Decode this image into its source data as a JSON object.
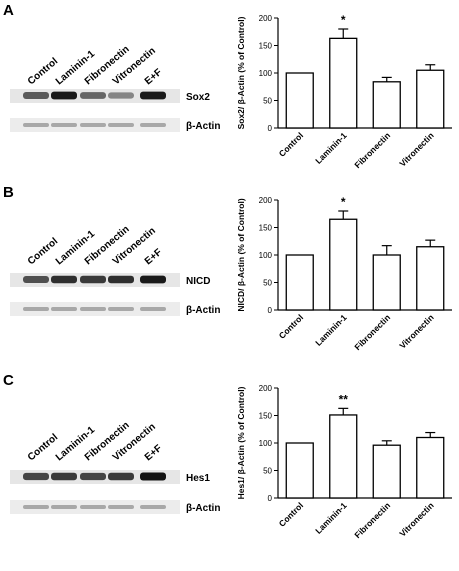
{
  "panels": [
    {
      "letter": "A",
      "blot": {
        "lanes": [
          "Control",
          "Laminin-1",
          "Fibronectin",
          "Vitronectin",
          "E+F"
        ],
        "target_label": "Sox2",
        "loading_label": "β-Actin",
        "band_intensity": [
          0.65,
          0.95,
          0.6,
          0.45,
          0.95
        ]
      }
    },
    {
      "letter": "B",
      "blot": {
        "lanes": [
          "Control",
          "Laminin-1",
          "Fibronectin",
          "Vitronectin",
          "E+F"
        ],
        "target_label": "NICD",
        "loading_label": "β-Actin",
        "band_intensity": [
          0.7,
          0.85,
          0.8,
          0.85,
          0.95
        ]
      }
    },
    {
      "letter": "C",
      "blot": {
        "lanes": [
          "Control",
          "Laminin-1",
          "Fibronectin",
          "Vitronectin",
          "E+F"
        ],
        "target_label": "Hes1",
        "loading_label": "β-Actin",
        "band_intensity": [
          0.75,
          0.8,
          0.75,
          0.8,
          0.98
        ]
      }
    }
  ],
  "chart_data": [
    {
      "type": "bar",
      "title": "",
      "categories": [
        "Control",
        "Laminin-1",
        "Fibronectin",
        "Vitronectin"
      ],
      "values": [
        100,
        163,
        84,
        105
      ],
      "errors": [
        0,
        17,
        8,
        10
      ],
      "significance": [
        "",
        "*",
        "",
        ""
      ],
      "ylabel": "Sox2/ β-Actin (% of Control)",
      "ylim": [
        0,
        200
      ],
      "yticks": [
        0,
        50,
        100,
        150,
        200
      ],
      "grid": false,
      "bar_color": "#ffffff"
    },
    {
      "type": "bar",
      "title": "",
      "categories": [
        "Control",
        "Laminin-1",
        "Fibronectin",
        "Vitronectin"
      ],
      "values": [
        100,
        165,
        100,
        115
      ],
      "errors": [
        0,
        15,
        17,
        12
      ],
      "significance": [
        "",
        "*",
        "",
        ""
      ],
      "ylabel": "NICD/ β-Actin (% of Control)",
      "ylim": [
        0,
        200
      ],
      "yticks": [
        0,
        50,
        100,
        150,
        200
      ],
      "grid": false,
      "bar_color": "#ffffff"
    },
    {
      "type": "bar",
      "title": "",
      "categories": [
        "Control",
        "Laminin-1",
        "Fibronectin",
        "Vitronectin"
      ],
      "values": [
        100,
        151,
        96,
        110
      ],
      "errors": [
        0,
        12,
        8,
        9
      ],
      "significance": [
        "",
        "**",
        "",
        ""
      ],
      "ylabel": "Hes1/ β-Actin (% of Control)",
      "ylim": [
        0,
        200
      ],
      "yticks": [
        0,
        50,
        100,
        150,
        200
      ],
      "grid": false,
      "bar_color": "#ffffff"
    }
  ]
}
